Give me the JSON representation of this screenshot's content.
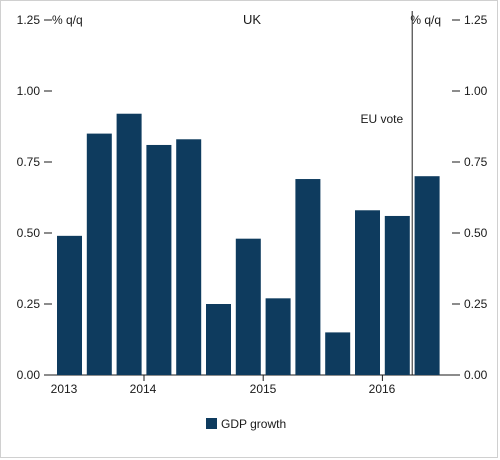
{
  "chart_data": {
    "type": "bar",
    "title": "UK",
    "left_unit": "% q/q",
    "right_unit": "% q/q",
    "ylim": [
      0,
      1.25
    ],
    "yticks": [
      0,
      0.25,
      0.5,
      0.75,
      1.0,
      1.25
    ],
    "ytick_labels": [
      "0.00",
      "0.25",
      "0.50",
      "0.75",
      "1.00",
      "1.25"
    ],
    "grid": false,
    "legend_position": "bottom-left",
    "categories": [
      "2013 Q2",
      "2013 Q3",
      "2013 Q4",
      "2014 Q1",
      "2014 Q2",
      "2014 Q3",
      "2014 Q4",
      "2015 Q1",
      "2015 Q2",
      "2015 Q3",
      "2015 Q4",
      "2016 Q1",
      "2016 Q2"
    ],
    "series": [
      {
        "name": "GDP growth",
        "color": "#0e3b5e",
        "values": [
          0.49,
          0.85,
          0.92,
          0.81,
          0.83,
          0.25,
          0.48,
          0.27,
          0.69,
          0.15,
          0.58,
          0.56,
          0.7
        ]
      }
    ],
    "year_labels": [
      "2013",
      "2014",
      "2015",
      "2016"
    ],
    "annotation": {
      "label": "EU vote",
      "between_categories": [
        "2016 Q1",
        "2016 Q2"
      ]
    }
  }
}
